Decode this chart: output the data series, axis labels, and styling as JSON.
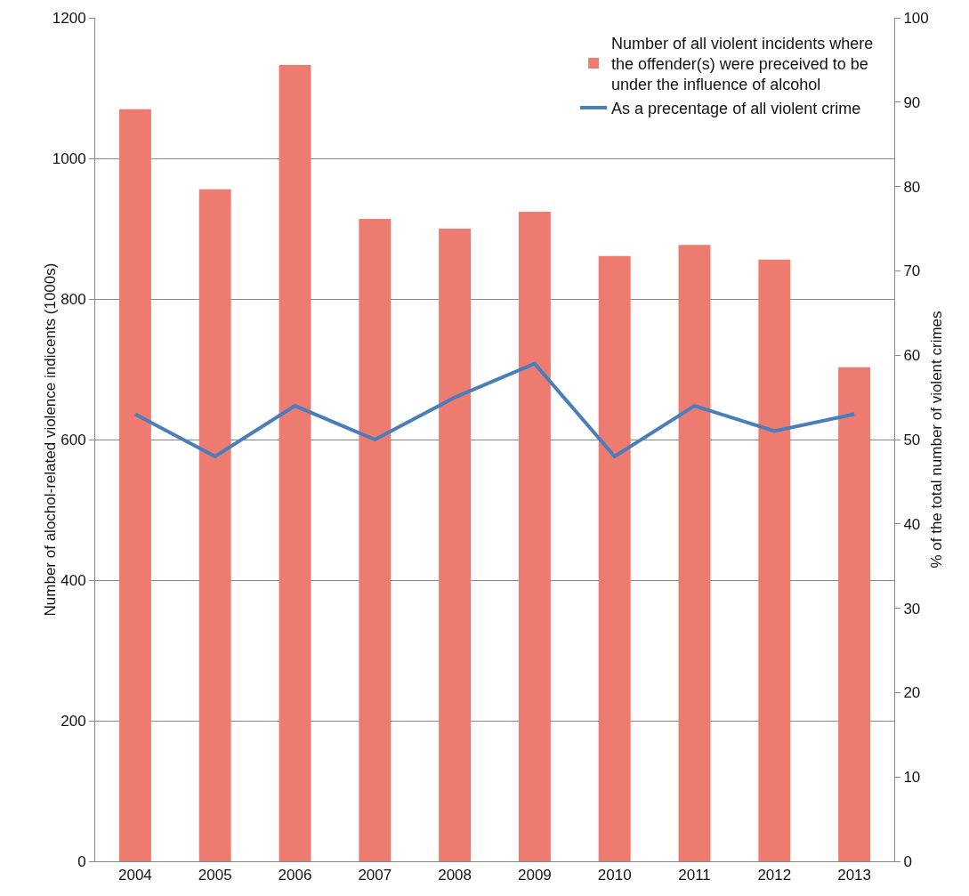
{
  "chart_data": {
    "type": "bar",
    "ylabel": "Number of alochol-related violence indicents (1000s)",
    "y2label": "% of the total number of violent crimes",
    "categories": [
      "2004",
      "2005",
      "2006",
      "2007",
      "2008",
      "2009",
      "2010",
      "2011",
      "2012",
      "2013"
    ],
    "series": [
      {
        "name": "Number of all violent incidents where the offender(s) were preceived to be under the influence of alcohol",
        "color": "#ee7b70",
        "values": [
          1070,
          956,
          1133,
          914,
          900,
          924,
          861,
          877,
          856,
          703
        ]
      },
      {
        "name": "As a precentage of all violent crime",
        "type": "line",
        "axis": "y2",
        "color": "#4a7ebb",
        "values": [
          53,
          48,
          54,
          50,
          55,
          59,
          48,
          54,
          51,
          53
        ]
      }
    ],
    "ylim": [
      0,
      1200
    ],
    "yticks": [
      0,
      200,
      400,
      600,
      800,
      1000,
      1200
    ],
    "y2lim": [
      0,
      100
    ],
    "y2ticks": [
      0,
      10,
      20,
      30,
      40,
      50,
      60,
      70,
      80,
      90,
      100
    ],
    "grid": "y",
    "legend": "top right",
    "marker": "none",
    "line_style": "solid"
  }
}
